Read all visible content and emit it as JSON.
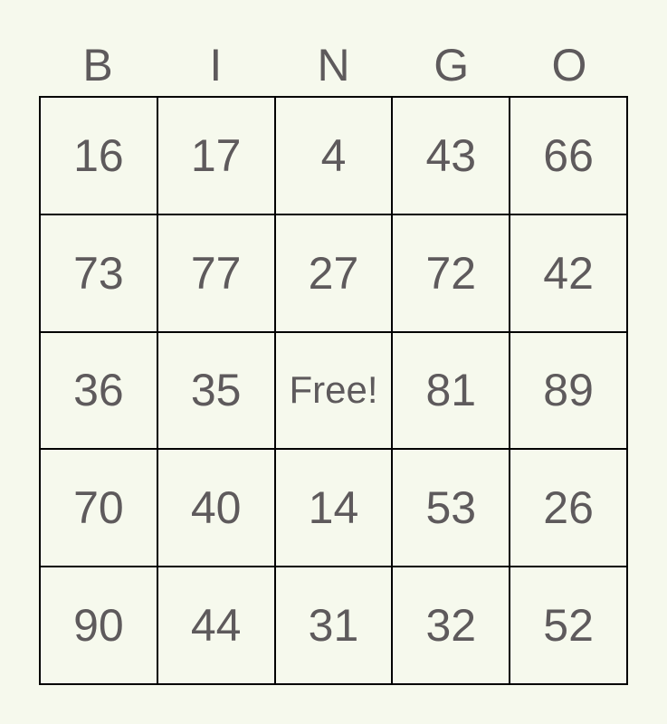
{
  "header": [
    "B",
    "I",
    "N",
    "G",
    "O"
  ],
  "rows": [
    [
      "16",
      "17",
      "4",
      "43",
      "66"
    ],
    [
      "73",
      "77",
      "27",
      "72",
      "42"
    ],
    [
      "36",
      "35",
      "Free!",
      "81",
      "89"
    ],
    [
      "70",
      "40",
      "14",
      "53",
      "26"
    ],
    [
      "90",
      "44",
      "31",
      "32",
      "52"
    ]
  ],
  "colors": {
    "background": "#f6f9ed",
    "text": "#5e5a5c",
    "grid": "#000000"
  }
}
